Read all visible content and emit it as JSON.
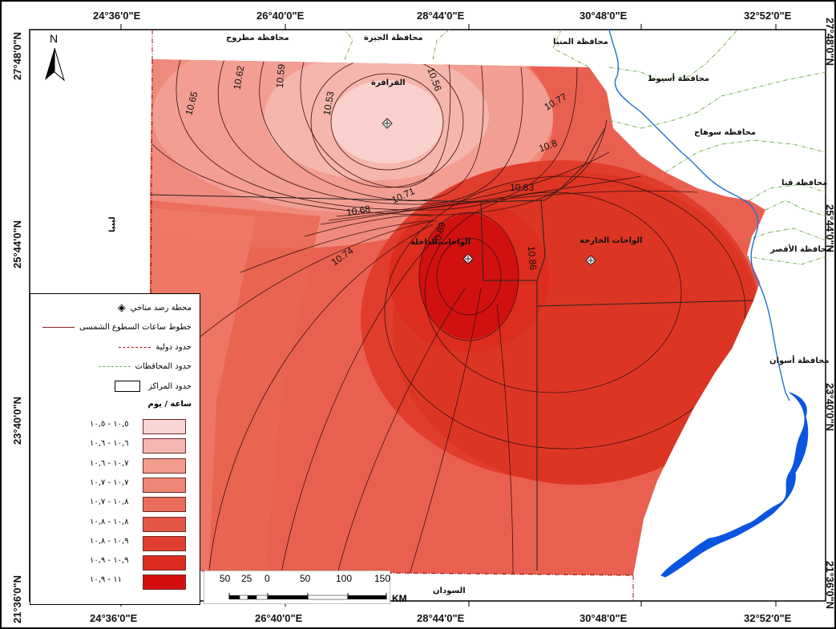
{
  "map": {
    "north_label": "N",
    "top_coords": [
      "24°36'0\"E",
      "26°40'0\"E",
      "28°44'0\"E",
      "30°48'0\"E",
      "32°52'0\"E"
    ],
    "bottom_coords": [
      "24°36'0\"E",
      "26°40'0\"E",
      "28°44'0\"E",
      "30°48'0\"E",
      "32°52'0\"E"
    ],
    "left_coords": [
      "27°48'0\"N",
      "25°44'0\"N",
      "23°40'0\"N",
      "21°36'0\"N"
    ],
    "right_coords": [
      "27°48'0\"N",
      "25°44'0\"N",
      "23°40'0\"N",
      "21°36'0\"N"
    ],
    "places": {
      "matrouh": "محافظة مطروح",
      "giza": "محافظة الجيزة",
      "minya": "محافظة المنيا",
      "assiut": "محافظة أسيوط",
      "sohag": "محافظة سوهاج",
      "qena": "محافظة قنا",
      "luxor": "محافظة الأقصر",
      "aswan": "محافظة أسوان",
      "libya": "ليبيا",
      "sudan": "السودان",
      "farafra": "الفرافرة",
      "dakhla": "الواحات الداخلة",
      "kharga": "الواحات الخارجة"
    },
    "isolines": [
      "10.62",
      "10.59",
      "10.53",
      "10.56",
      "10.65",
      "10.77",
      "10.8",
      "10.83",
      "10.71",
      "10.68",
      "10.74",
      "10.89",
      "10.86"
    ]
  },
  "legend": {
    "station": "محطة رصد مناخي",
    "sunshine_lines": "خطوط ساعات السطوع الشمسى",
    "intl_borders": "حدود دولية",
    "gov_borders": "حدود المحافظات",
    "center_borders": "حدود المراكز",
    "unit": "ساعة / يوم",
    "classes": [
      {
        "label": "١٠,٥ - ١٠,٥",
        "color": "#f8d4d2"
      },
      {
        "label": "١٠,٦ - ١٠,٦",
        "color": "#f5b7b1"
      },
      {
        "label": "١٠,٧ - ١٠,٦",
        "color": "#f29c90"
      },
      {
        "label": "١٠,٧ - ١٠,٧",
        "color": "#ee8575"
      },
      {
        "label": "١٠,٨ - ١٠,٧",
        "color": "#ea6d5b"
      },
      {
        "label": "١٠,٨ - ١٠,٨",
        "color": "#e65646"
      },
      {
        "label": "١٠,٩ - ١٠,٨",
        "color": "#e23f32"
      },
      {
        "label": "١٠,٩ - ١٠,٩",
        "color": "#dd2a20"
      },
      {
        "label": "١١ - ١٠,٩",
        "color": "#d40d0d"
      }
    ]
  },
  "scale": {
    "ticks": [
      "50",
      "25",
      "0",
      "50",
      "100",
      "150"
    ],
    "unit": "KM"
  },
  "colors": {
    "river": "#1f6fd1",
    "lake": "#0a55e0",
    "intl_border": "#a31212",
    "gov_border": "#6fae4f"
  }
}
